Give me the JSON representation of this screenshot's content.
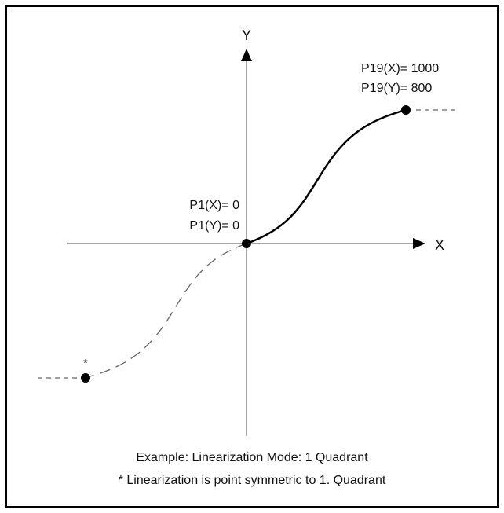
{
  "axes": {
    "x_label": "X",
    "y_label": "Y"
  },
  "points": {
    "p1": {
      "x_label": "P1(X)= 0",
      "y_label": "P1(Y)= 0"
    },
    "p19": {
      "x_label": "P19(X)= 1000",
      "y_label": "P19(Y)= 800"
    },
    "mirror": {
      "marker": "*"
    }
  },
  "captions": [
    "Example: Linearization Mode: 1 Quadrant",
    "* Linearization is point symmetric to 1. Quadrant"
  ]
}
